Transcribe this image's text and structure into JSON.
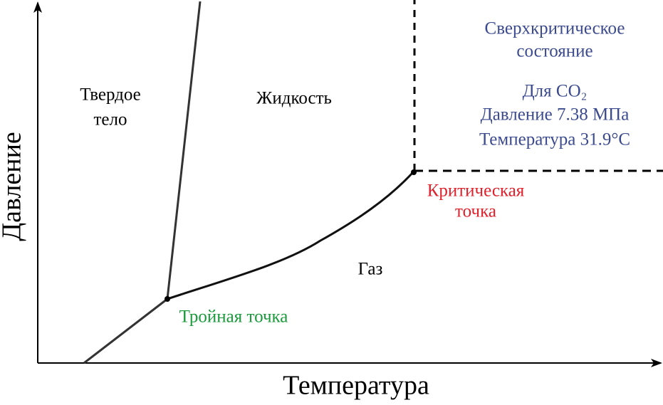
{
  "axes": {
    "x_label": "Температура",
    "y_label": "Давление"
  },
  "regions": {
    "solid": [
      "Твердое",
      "тело"
    ],
    "liquid": "Жидкость",
    "gas": "Газ"
  },
  "points": {
    "triple": "Тройная точка",
    "critical": [
      "Критическая",
      "точка"
    ]
  },
  "supercritical": {
    "title": [
      "Сверхкритическое",
      "состояние"
    ],
    "co2": [
      "Для CO₂",
      "Давление 7.38 МПа",
      "Температура 31.9°C"
    ]
  }
}
